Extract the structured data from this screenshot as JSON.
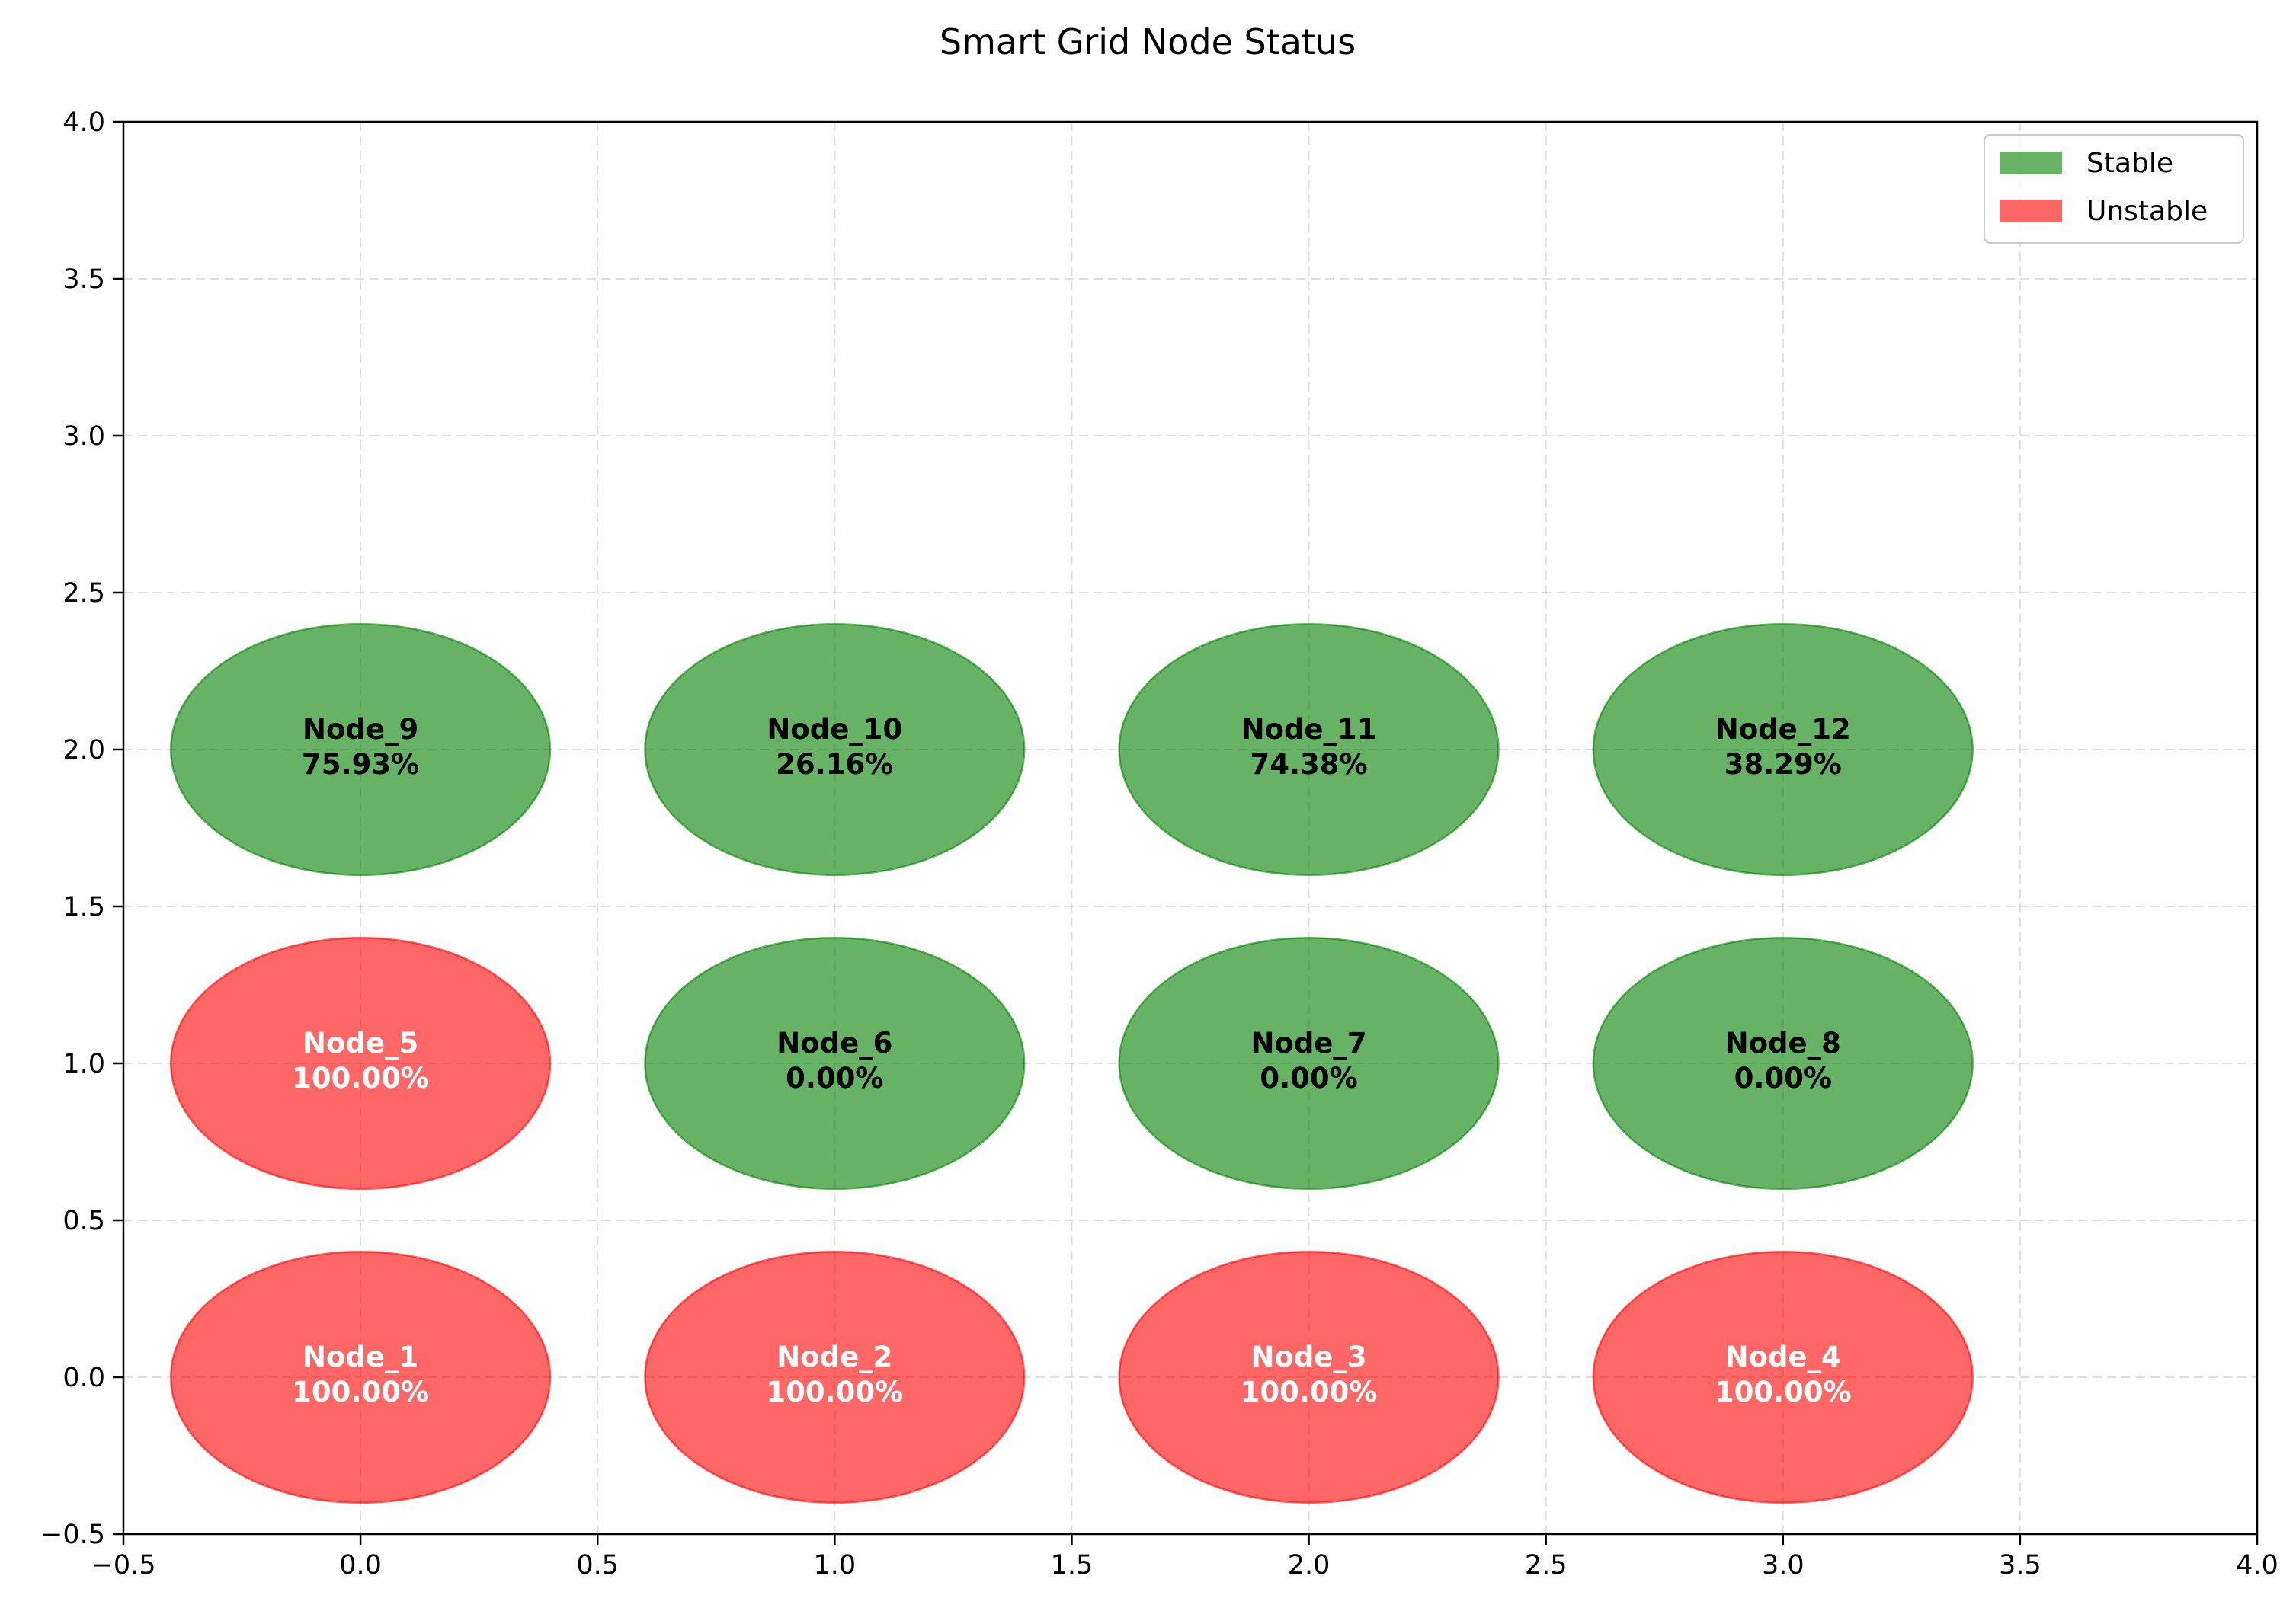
{
  "chart_data": {
    "type": "scatter",
    "title": "Smart Grid Node Status",
    "xlabel": "",
    "ylabel": "",
    "xlim": [
      -0.5,
      4.0
    ],
    "ylim": [
      -0.5,
      4.0
    ],
    "xticks": [
      -0.5,
      0.0,
      0.5,
      1.0,
      1.5,
      2.0,
      2.5,
      3.0,
      3.5,
      4.0
    ],
    "yticks": [
      -0.5,
      0.0,
      0.5,
      1.0,
      1.5,
      2.0,
      2.5,
      3.0,
      3.5,
      4.0
    ],
    "xtick_labels": [
      "−0.5",
      "0.0",
      "0.5",
      "1.0",
      "1.5",
      "2.0",
      "2.5",
      "3.0",
      "3.5",
      "4.0"
    ],
    "ytick_labels": [
      "−0.5",
      "0.0",
      "0.5",
      "1.0",
      "1.5",
      "2.0",
      "2.5",
      "3.0",
      "3.5",
      "4.0"
    ],
    "grid": true,
    "legend_position": "top-right",
    "legend": [
      {
        "label": "Stable",
        "color": "#008000"
      },
      {
        "label": "Unstable",
        "color": "#ff0000"
      }
    ],
    "marker_size": {
      "width": 0.8,
      "height": 0.8
    },
    "nodes": [
      {
        "name": "Node_1",
        "x": 0,
        "y": 0,
        "value": "100.00%",
        "status": "Unstable"
      },
      {
        "name": "Node_2",
        "x": 1,
        "y": 0,
        "value": "100.00%",
        "status": "Unstable"
      },
      {
        "name": "Node_3",
        "x": 2,
        "y": 0,
        "value": "100.00%",
        "status": "Unstable"
      },
      {
        "name": "Node_4",
        "x": 3,
        "y": 0,
        "value": "100.00%",
        "status": "Unstable"
      },
      {
        "name": "Node_5",
        "x": 0,
        "y": 1,
        "value": "100.00%",
        "status": "Unstable"
      },
      {
        "name": "Node_6",
        "x": 1,
        "y": 1,
        "value": "0.00%",
        "status": "Stable"
      },
      {
        "name": "Node_7",
        "x": 2,
        "y": 1,
        "value": "0.00%",
        "status": "Stable"
      },
      {
        "name": "Node_8",
        "x": 3,
        "y": 1,
        "value": "0.00%",
        "status": "Stable"
      },
      {
        "name": "Node_9",
        "x": 0,
        "y": 2,
        "value": "75.93%",
        "status": "Stable"
      },
      {
        "name": "Node_10",
        "x": 1,
        "y": 2,
        "value": "26.16%",
        "status": "Stable"
      },
      {
        "name": "Node_11",
        "x": 2,
        "y": 2,
        "value": "74.38%",
        "status": "Stable"
      },
      {
        "name": "Node_12",
        "x": 3,
        "y": 2,
        "value": "38.29%",
        "status": "Stable"
      }
    ]
  }
}
